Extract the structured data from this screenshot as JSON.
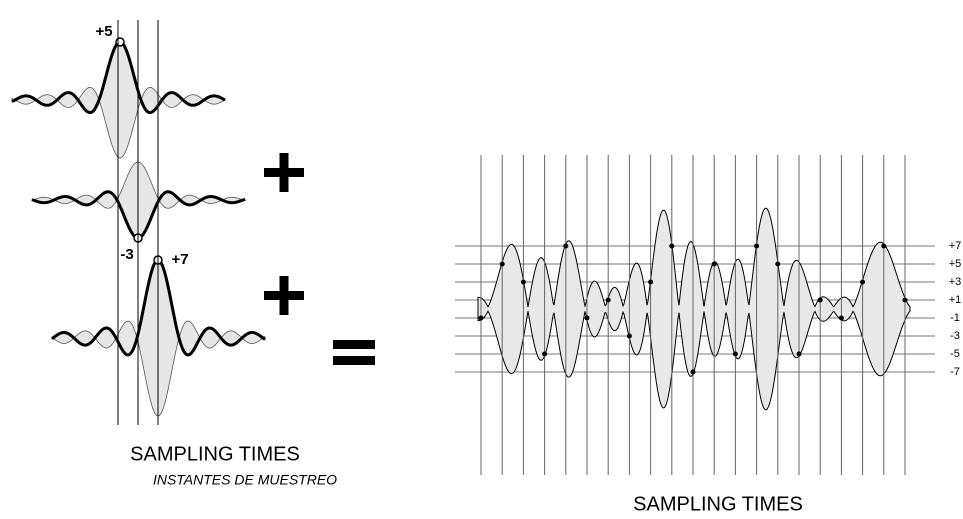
{
  "left": {
    "pulse_labels": [
      "+5",
      "-3",
      "+7"
    ],
    "caption": "SAMPLING TIMES",
    "subcaption": "INSTANTES DE MUESTREO"
  },
  "right": {
    "level_labels": [
      "+7",
      "+5",
      "+3",
      "+1",
      "-1",
      "-3",
      "-5",
      "-7"
    ],
    "caption": "SAMPLING TIMES"
  }
}
